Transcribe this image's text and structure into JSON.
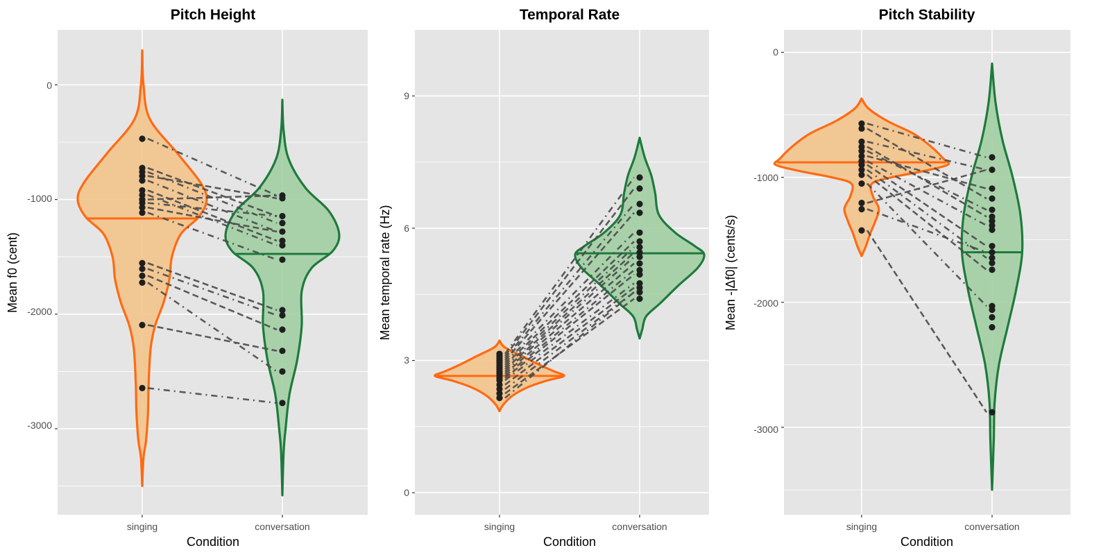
{
  "colors": {
    "panel_bg": "#e5e5e5",
    "grid": "#ffffff",
    "singing_line": "#ff6a13",
    "singing_fill": "#f2c48d",
    "conversation_line": "#1e7a3c",
    "conversation_fill": "#a3cfa5",
    "point": "#1f1f1f",
    "pair_line": "#4a4a4a"
  },
  "chart_data": [
    {
      "type": "violin",
      "title": "Pitch Height",
      "xlabel": "Condition",
      "ylabel": "Mean f0 (cent)",
      "categories": [
        "singing",
        "conversation"
      ],
      "ylim": [
        -3750,
        480
      ],
      "yticks": [
        0,
        -1000,
        -2000,
        -3000
      ],
      "ytick_labels": [
        "0",
        "-1000",
        "-2000",
        "-3000"
      ],
      "grid": true,
      "series": [
        {
          "name": "singing",
          "median": -1165,
          "range": [
            -3500,
            300
          ],
          "values": [
            -470,
            -725,
            -760,
            -795,
            -835,
            -920,
            -960,
            -1000,
            -1030,
            -1070,
            -1115,
            -1555,
            -1605,
            -1665,
            -1725,
            -2095,
            -2645
          ]
        },
        {
          "name": "conversation",
          "median": -1475,
          "range": [
            -3580,
            -130
          ],
          "values": [
            -965,
            -990,
            -1145,
            -1205,
            -1280,
            -1360,
            -1400,
            -1525,
            -1965,
            -2010,
            -2135,
            -2320,
            -2500,
            -2775
          ]
        }
      ],
      "violin_profiles": {
        "singing": [
          [
            300,
            0.0
          ],
          [
            0,
            0.02
          ],
          [
            -300,
            0.12
          ],
          [
            -600,
            0.55
          ],
          [
            -850,
            0.9
          ],
          [
            -1000,
            1.0
          ],
          [
            -1150,
            0.88
          ],
          [
            -1300,
            0.6
          ],
          [
            -1500,
            0.46
          ],
          [
            -1700,
            0.42
          ],
          [
            -1900,
            0.33
          ],
          [
            -2100,
            0.2
          ],
          [
            -2300,
            0.13
          ],
          [
            -2600,
            0.1
          ],
          [
            -2850,
            0.09
          ],
          [
            -3100,
            0.06
          ],
          [
            -3250,
            0.02
          ],
          [
            -3500,
            0.0
          ]
        ],
        "conversation": [
          [
            -130,
            0.0
          ],
          [
            -400,
            0.02
          ],
          [
            -650,
            0.1
          ],
          [
            -900,
            0.36
          ],
          [
            -1100,
            0.72
          ],
          [
            -1300,
            0.88
          ],
          [
            -1450,
            0.78
          ],
          [
            -1600,
            0.45
          ],
          [
            -1800,
            0.3
          ],
          [
            -2100,
            0.3
          ],
          [
            -2400,
            0.23
          ],
          [
            -2700,
            0.11
          ],
          [
            -3000,
            0.05
          ],
          [
            -3200,
            0.02
          ],
          [
            -3580,
            0.0
          ]
        ]
      },
      "pairs": [
        [
          -470,
          -965
        ],
        [
          -725,
          -1145
        ],
        [
          -760,
          -1205
        ],
        [
          -795,
          -990
        ],
        [
          -835,
          -1280
        ],
        [
          -920,
          -1360
        ],
        [
          -960,
          -1400
        ],
        [
          -1000,
          -965
        ],
        [
          -1030,
          -1145
        ],
        [
          -1070,
          -1280
        ],
        [
          -1115,
          -1525
        ],
        [
          -1555,
          -1965
        ],
        [
          -1605,
          -2010
        ],
        [
          -1665,
          -2135
        ],
        [
          -1725,
          -2500
        ],
        [
          -2095,
          -2320
        ],
        [
          -2645,
          -2775
        ]
      ]
    },
    {
      "type": "violin",
      "title": "Temporal Rate",
      "xlabel": "Condition",
      "ylabel": "Mean temporal rate (Hz)",
      "categories": [
        "singing",
        "conversation"
      ],
      "ylim": [
        -0.5,
        10.5
      ],
      "yticks": [
        0,
        3,
        6,
        9
      ],
      "ytick_labels": [
        "0",
        "3",
        "6",
        "9"
      ],
      "grid": true,
      "series": [
        {
          "name": "singing",
          "median": 2.65,
          "range": [
            1.85,
            3.45
          ],
          "values": [
            2.15,
            2.25,
            2.35,
            2.45,
            2.55,
            2.6,
            2.65,
            2.7,
            2.75,
            2.8,
            2.85,
            2.9,
            2.95,
            3.0,
            3.05,
            3.1,
            3.15
          ]
        },
        {
          "name": "conversation",
          "median": 5.43,
          "range": [
            3.5,
            8.05
          ],
          "values": [
            7.15,
            6.9,
            6.55,
            6.35,
            5.9,
            5.7,
            5.57,
            5.45,
            5.35,
            5.2,
            5.05,
            4.95,
            4.75,
            4.65,
            4.55,
            4.4
          ]
        }
      ],
      "violin_profiles": {
        "singing": [
          [
            3.45,
            0.0
          ],
          [
            3.3,
            0.08
          ],
          [
            3.1,
            0.35
          ],
          [
            2.9,
            0.62
          ],
          [
            2.75,
            0.85
          ],
          [
            2.65,
            1.0
          ],
          [
            2.55,
            0.75
          ],
          [
            2.4,
            0.45
          ],
          [
            2.2,
            0.2
          ],
          [
            2.0,
            0.06
          ],
          [
            1.85,
            0.0
          ]
        ],
        "conversation": [
          [
            8.05,
            0.0
          ],
          [
            7.6,
            0.08
          ],
          [
            7.2,
            0.18
          ],
          [
            6.8,
            0.24
          ],
          [
            6.3,
            0.3
          ],
          [
            5.9,
            0.55
          ],
          [
            5.6,
            0.85
          ],
          [
            5.4,
            1.0
          ],
          [
            5.1,
            0.9
          ],
          [
            4.7,
            0.6
          ],
          [
            4.3,
            0.32
          ],
          [
            4.0,
            0.1
          ],
          [
            3.7,
            0.04
          ],
          [
            3.5,
            0.0
          ]
        ]
      },
      "pairs": [
        [
          3.15,
          7.15
        ],
        [
          3.1,
          6.9
        ],
        [
          3.05,
          6.55
        ],
        [
          3.0,
          6.35
        ],
        [
          2.95,
          5.9
        ],
        [
          2.9,
          5.7
        ],
        [
          2.85,
          5.57
        ],
        [
          2.8,
          5.45
        ],
        [
          2.75,
          5.35
        ],
        [
          2.7,
          5.2
        ],
        [
          2.65,
          5.05
        ],
        [
          2.6,
          4.95
        ],
        [
          2.55,
          4.75
        ],
        [
          2.45,
          4.65
        ],
        [
          2.35,
          4.55
        ],
        [
          2.25,
          4.4
        ],
        [
          2.15,
          4.55
        ]
      ]
    },
    {
      "type": "violin",
      "title": "Pitch Stability",
      "xlabel": "Condition",
      "ylabel": "Mean -|Δf0| (cents/s)",
      "categories": [
        "singing",
        "conversation"
      ],
      "ylim": [
        -3700,
        180
      ],
      "yticks": [
        0,
        -1000,
        -2000,
        -3000
      ],
      "ytick_labels": [
        "0",
        "-1000",
        "-2000",
        "-3000"
      ],
      "grid": true,
      "series": [
        {
          "name": "singing",
          "median": -880,
          "range": [
            -1630,
            -370
          ],
          "values": [
            -570,
            -610,
            -715,
            -755,
            -790,
            -830,
            -870,
            -900,
            -940,
            -980,
            -1050,
            -1205,
            -1255,
            -1425
          ]
        },
        {
          "name": "conversation",
          "median": -1600,
          "range": [
            -3500,
            -90
          ],
          "values": [
            -840,
            -940,
            -1090,
            -1170,
            -1260,
            -1315,
            -1350,
            -1385,
            -1420,
            -1550,
            -1600,
            -1645,
            -1685,
            -1740,
            -2030,
            -2060,
            -2120,
            -2200,
            -2880
          ]
        }
      ],
      "violin_profiles": {
        "singing": [
          [
            -370,
            0.0
          ],
          [
            -450,
            0.08
          ],
          [
            -550,
            0.3
          ],
          [
            -650,
            0.6
          ],
          [
            -750,
            0.8
          ],
          [
            -850,
            0.95
          ],
          [
            -900,
            1.0
          ],
          [
            -950,
            0.72
          ],
          [
            -1000,
            0.35
          ],
          [
            -1050,
            0.12
          ],
          [
            -1150,
            0.13
          ],
          [
            -1250,
            0.2
          ],
          [
            -1350,
            0.16
          ],
          [
            -1450,
            0.1
          ],
          [
            -1550,
            0.05
          ],
          [
            -1630,
            0.0
          ]
        ],
        "conversation": [
          [
            -90,
            0.0
          ],
          [
            -400,
            0.04
          ],
          [
            -700,
            0.12
          ],
          [
            -1000,
            0.24
          ],
          [
            -1300,
            0.33
          ],
          [
            -1600,
            0.35
          ],
          [
            -1900,
            0.28
          ],
          [
            -2200,
            0.18
          ],
          [
            -2500,
            0.08
          ],
          [
            -2800,
            0.03
          ],
          [
            -3100,
            0.02
          ],
          [
            -3500,
            0.0
          ]
        ]
      },
      "pairs": [
        [
          -570,
          -840
        ],
        [
          -610,
          -1170
        ],
        [
          -715,
          -940
        ],
        [
          -755,
          -1315
        ],
        [
          -790,
          -1260
        ],
        [
          -830,
          -1090
        ],
        [
          -870,
          -1385
        ],
        [
          -900,
          -1550
        ],
        [
          -940,
          -1645
        ],
        [
          -980,
          -1740
        ],
        [
          -1050,
          -2030
        ],
        [
          -1205,
          -940
        ],
        [
          -1255,
          -1600
        ],
        [
          -1425,
          -2880
        ]
      ]
    }
  ]
}
